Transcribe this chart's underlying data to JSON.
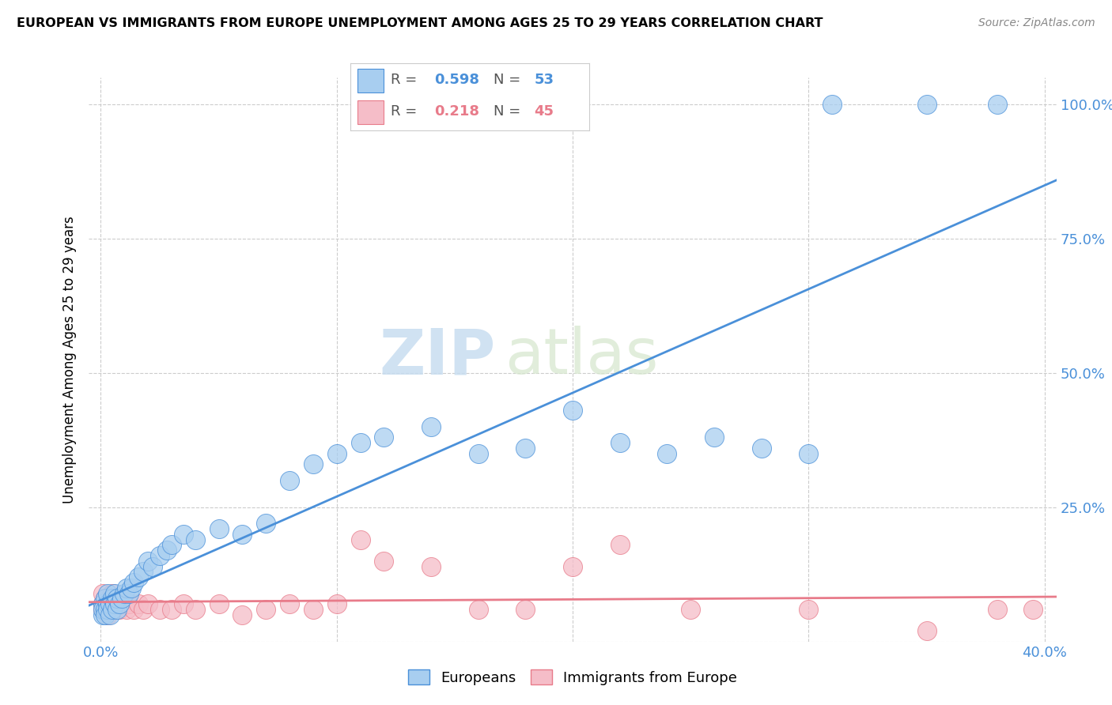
{
  "title": "EUROPEAN VS IMMIGRANTS FROM EUROPE UNEMPLOYMENT AMONG AGES 25 TO 29 YEARS CORRELATION CHART",
  "source": "Source: ZipAtlas.com",
  "ylabel": "Unemployment Among Ages 25 to 29 years",
  "xlim": [
    -0.005,
    0.405
  ],
  "ylim": [
    0.0,
    1.05
  ],
  "blue_color": "#a8cef0",
  "pink_color": "#f5bdc8",
  "blue_line_color": "#4a90d9",
  "pink_line_color": "#e87b8a",
  "blue_R": "0.598",
  "blue_N": "53",
  "pink_R": "0.218",
  "pink_N": "45",
  "watermark_zip": "ZIP",
  "watermark_atlas": "atlas",
  "eu_x": [
    0.001,
    0.001,
    0.001,
    0.002,
    0.002,
    0.002,
    0.003,
    0.003,
    0.003,
    0.004,
    0.004,
    0.005,
    0.005,
    0.006,
    0.006,
    0.007,
    0.007,
    0.008,
    0.009,
    0.01,
    0.011,
    0.012,
    0.013,
    0.014,
    0.016,
    0.018,
    0.02,
    0.022,
    0.025,
    0.028,
    0.03,
    0.035,
    0.04,
    0.05,
    0.06,
    0.07,
    0.08,
    0.09,
    0.1,
    0.11,
    0.12,
    0.14,
    0.16,
    0.18,
    0.2,
    0.22,
    0.24,
    0.26,
    0.28,
    0.3,
    0.31,
    0.35,
    0.38
  ],
  "eu_y": [
    0.05,
    0.07,
    0.06,
    0.06,
    0.08,
    0.05,
    0.07,
    0.06,
    0.09,
    0.07,
    0.05,
    0.08,
    0.06,
    0.07,
    0.09,
    0.06,
    0.08,
    0.07,
    0.08,
    0.09,
    0.1,
    0.09,
    0.1,
    0.11,
    0.12,
    0.13,
    0.15,
    0.14,
    0.16,
    0.17,
    0.18,
    0.2,
    0.19,
    0.21,
    0.2,
    0.22,
    0.3,
    0.33,
    0.35,
    0.37,
    0.38,
    0.4,
    0.35,
    0.36,
    0.43,
    0.37,
    0.35,
    0.38,
    0.36,
    0.35,
    1.0,
    1.0,
    1.0
  ],
  "im_x": [
    0.001,
    0.001,
    0.001,
    0.002,
    0.002,
    0.003,
    0.003,
    0.004,
    0.004,
    0.005,
    0.005,
    0.006,
    0.006,
    0.007,
    0.008,
    0.009,
    0.01,
    0.011,
    0.012,
    0.014,
    0.016,
    0.018,
    0.02,
    0.025,
    0.03,
    0.035,
    0.04,
    0.05,
    0.06,
    0.07,
    0.08,
    0.09,
    0.1,
    0.11,
    0.12,
    0.14,
    0.16,
    0.18,
    0.2,
    0.22,
    0.25,
    0.3,
    0.35,
    0.38,
    0.395
  ],
  "im_y": [
    0.07,
    0.09,
    0.06,
    0.08,
    0.06,
    0.07,
    0.05,
    0.08,
    0.06,
    0.07,
    0.09,
    0.06,
    0.08,
    0.07,
    0.06,
    0.08,
    0.07,
    0.06,
    0.07,
    0.06,
    0.07,
    0.06,
    0.07,
    0.06,
    0.06,
    0.07,
    0.06,
    0.07,
    0.05,
    0.06,
    0.07,
    0.06,
    0.07,
    0.19,
    0.15,
    0.14,
    0.06,
    0.06,
    0.14,
    0.18,
    0.06,
    0.06,
    0.02,
    0.06,
    0.06
  ]
}
